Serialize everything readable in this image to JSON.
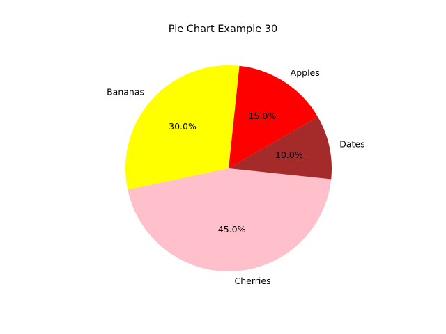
{
  "chart_data": {
    "type": "pie",
    "title": "Pie Chart Example 30",
    "categories": [
      "Apples",
      "Bananas",
      "Cherries",
      "Dates"
    ],
    "values": [
      15,
      30,
      45,
      10
    ],
    "percent_labels": [
      "15.0%",
      "30.0%",
      "45.0%",
      "10.0%"
    ],
    "colors": [
      "#ff0000",
      "#ffff00",
      "#ffc0cb",
      "#a52a2a"
    ],
    "start_angle_deg": 30,
    "direction": "counterclockwise",
    "legend": "none"
  }
}
